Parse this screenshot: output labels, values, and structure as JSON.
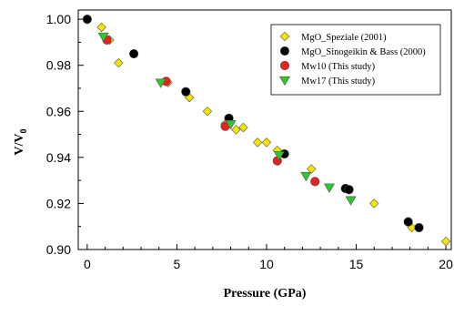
{
  "chart_data": {
    "type": "scatter",
    "xlabel": "Pressure (GPa)",
    "ylabel_main": "V/V",
    "ylabel_sub": "0",
    "xlim": [
      -0.5,
      20.3
    ],
    "ylim": [
      0.9,
      1.004
    ],
    "xticks": [
      0,
      5,
      10,
      15,
      20
    ],
    "xtick_labels": [
      "0",
      "5",
      "10",
      "15",
      "20"
    ],
    "yticks": [
      0.9,
      0.92,
      0.94,
      0.96,
      0.98,
      1.0
    ],
    "ytick_labels": [
      "0.90",
      "0.92",
      "0.94",
      "0.96",
      "0.98",
      "1.00"
    ],
    "grid": false,
    "legend_position": "top-right",
    "series": [
      {
        "name": "MgO_Speziale (2001)",
        "marker": "diamond",
        "color": "#F5E300",
        "points": [
          [
            0.0,
            1.0
          ],
          [
            0.8,
            0.9965
          ],
          [
            1.25,
            0.991
          ],
          [
            1.75,
            0.981
          ],
          [
            4.5,
            0.9725
          ],
          [
            5.7,
            0.966
          ],
          [
            6.7,
            0.96
          ],
          [
            7.7,
            0.9545
          ],
          [
            8.3,
            0.952
          ],
          [
            8.7,
            0.953
          ],
          [
            9.5,
            0.9465
          ],
          [
            10.0,
            0.9465
          ],
          [
            10.6,
            0.943
          ],
          [
            12.5,
            0.935
          ],
          [
            16.0,
            0.92
          ],
          [
            18.1,
            0.9095
          ],
          [
            20.0,
            0.9035
          ]
        ]
      },
      {
        "name": "MgO_Sinogeikin & Bass (2000)",
        "marker": "circle",
        "color": "#000000",
        "points": [
          [
            0.0,
            1.0
          ],
          [
            2.6,
            0.985
          ],
          [
            5.5,
            0.9685
          ],
          [
            7.9,
            0.957
          ],
          [
            11.0,
            0.9415
          ],
          [
            14.4,
            0.9265
          ],
          [
            14.6,
            0.926
          ],
          [
            17.9,
            0.912
          ],
          [
            18.5,
            0.9095
          ]
        ]
      },
      {
        "name": "Mw10 (This study)",
        "marker": "circle",
        "color": "#E8211C",
        "points": [
          [
            1.1,
            0.991
          ],
          [
            4.4,
            0.973
          ],
          [
            7.7,
            0.9535
          ],
          [
            10.6,
            0.9385
          ],
          [
            12.7,
            0.9295
          ]
        ]
      },
      {
        "name": "Mw17 (This study)",
        "marker": "triangle-down",
        "color": "#2EC72E",
        "points": [
          [
            0.9,
            0.9925
          ],
          [
            4.1,
            0.9725
          ],
          [
            8.0,
            0.9545
          ],
          [
            10.7,
            0.941
          ],
          [
            12.2,
            0.932
          ],
          [
            13.5,
            0.927
          ],
          [
            14.7,
            0.9215
          ]
        ]
      }
    ]
  }
}
